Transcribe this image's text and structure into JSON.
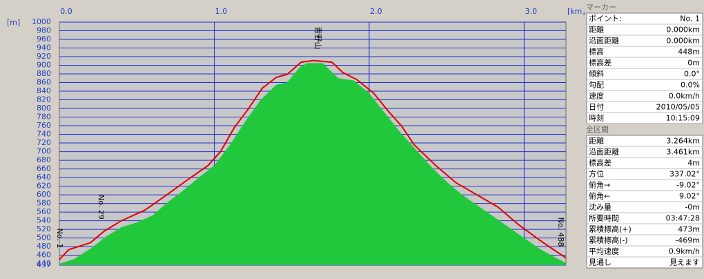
{
  "chart_data": {
    "type": "line",
    "x_unit": "[km]",
    "y_unit": "[m]",
    "xlim": [
      0,
      3.27
    ],
    "ylim": [
      437,
      1000
    ],
    "xticks": [
      {
        "value": 0,
        "label": "0.0"
      },
      {
        "value": 1,
        "label": "1.0"
      },
      {
        "value": 2,
        "label": "2.0"
      },
      {
        "value": 3,
        "label": "3.0"
      }
    ],
    "yticks": [
      1000,
      980,
      960,
      940,
      920,
      900,
      880,
      860,
      840,
      820,
      800,
      780,
      760,
      740,
      720,
      700,
      680,
      660,
      640,
      620,
      600,
      580,
      560,
      540,
      520,
      500,
      480,
      460,
      440,
      437
    ],
    "grid": true,
    "annotations": [
      "No. 1",
      "No. 29",
      "青野山",
      "No. 488"
    ],
    "series": [
      {
        "color": "#22c83c",
        "fill": true,
        "x": [
          0,
          0.1,
          0.2,
          0.3,
          0.4,
          0.5,
          0.6,
          0.7,
          0.8,
          0.9,
          1.0,
          1.1,
          1.2,
          1.3,
          1.4,
          1.47,
          1.55,
          1.6,
          1.7,
          1.8,
          1.9,
          2.0,
          2.1,
          2.2,
          2.3,
          2.4,
          2.5,
          2.6,
          2.7,
          2.8,
          2.9,
          3.0,
          3.1,
          3.2,
          3.27
        ],
        "values": [
          440,
          452,
          475,
          503,
          525,
          536,
          552,
          583,
          610,
          640,
          668,
          715,
          770,
          820,
          855,
          860,
          895,
          905,
          905,
          870,
          865,
          835,
          790,
          745,
          705,
          665,
          630,
          600,
          575,
          550,
          525,
          500,
          475,
          455,
          442
        ]
      },
      {
        "color": "#e00000",
        "fill": false,
        "x": [
          0,
          0.06,
          0.2,
          0.29,
          0.4,
          0.55,
          0.69,
          0.82,
          0.96,
          1.04,
          1.13,
          1.22,
          1.31,
          1.4,
          1.47,
          1.56,
          1.64,
          1.76,
          1.83,
          1.92,
          2.03,
          2.12,
          2.21,
          2.29,
          2.43,
          2.56,
          2.7,
          2.83,
          2.96,
          3.1,
          3.19,
          3.27
        ],
        "values": [
          450,
          473,
          489,
          516,
          540,
          564,
          599,
          633,
          668,
          700,
          756,
          799,
          847,
          872,
          879,
          907,
          911,
          907,
          883,
          867,
          835,
          795,
          759,
          716,
          668,
          628,
          599,
          572,
          532,
          495,
          473,
          454
        ]
      }
    ]
  },
  "panel": {
    "marker": {
      "title": "マーカー",
      "rows": [
        [
          "ポイント:",
          "No. 1"
        ],
        [
          "距離",
          "0.000km"
        ],
        [
          "沿面距離",
          "0.000km"
        ],
        [
          "標高",
          "448m"
        ],
        [
          "標高差",
          "0m"
        ],
        [
          "傾斜",
          "0.0°"
        ],
        [
          "勾配",
          "0.0%"
        ],
        [
          "速度",
          "0.0km/h"
        ],
        [
          "日付",
          "2010/05/05"
        ],
        [
          "時刻",
          "10:15:09"
        ]
      ]
    },
    "total": {
      "title": "全区間",
      "rows": [
        [
          "距離",
          "3.264km"
        ],
        [
          "沿面距離",
          "3.461km"
        ],
        [
          "標高差",
          "4m"
        ],
        [
          "方位",
          "337.02°"
        ],
        [
          "俯角→",
          "-9.02°"
        ],
        [
          "俯角←",
          "9.02°"
        ],
        [
          "沈み量",
          "-0m"
        ],
        [
          "所要時間",
          "03:47:28"
        ],
        [
          "累積標高(+)",
          "473m"
        ],
        [
          "累積標高(-)",
          "-469m"
        ],
        [
          "平均速度",
          "0.9km/h"
        ],
        [
          "見通し",
          "見えます"
        ]
      ]
    }
  }
}
